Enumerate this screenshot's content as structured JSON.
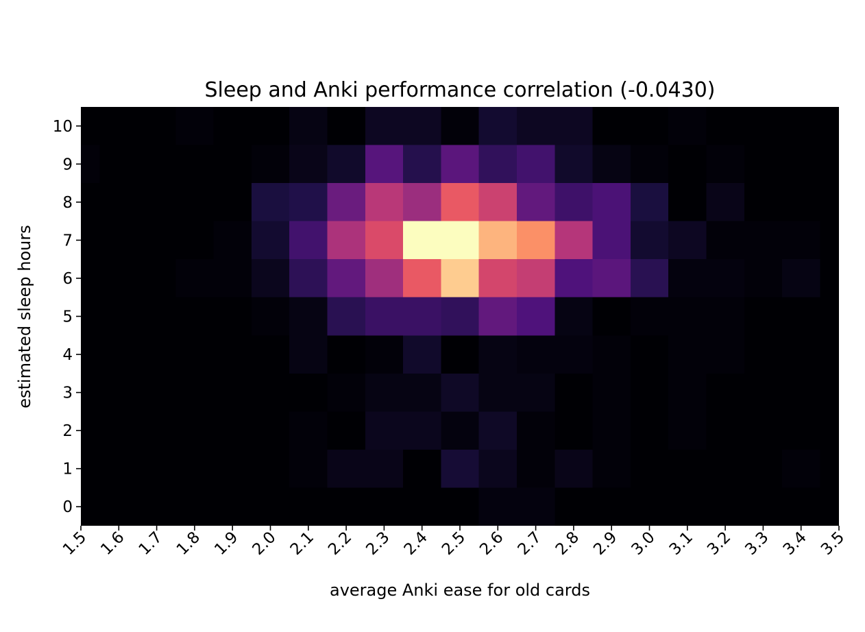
{
  "chart_data": {
    "type": "heatmap",
    "title": "Sleep and Anki performance correlation (-0.0430)",
    "xlabel": "average Anki ease for old cards",
    "ylabel": "estimated sleep hours",
    "x_ticks": [
      "1.5",
      "1.6",
      "1.7",
      "1.8",
      "1.9",
      "2.0",
      "2.1",
      "2.2",
      "2.3",
      "2.4",
      "2.5",
      "2.6",
      "2.7",
      "2.8",
      "2.9",
      "3.0",
      "3.1",
      "3.2",
      "3.3",
      "3.4",
      "3.5"
    ],
    "y_ticks": [
      "0",
      "1",
      "2",
      "3",
      "4",
      "5",
      "6",
      "7",
      "8",
      "9",
      "10"
    ],
    "x_bins": [
      1.5,
      1.6,
      1.7,
      1.8,
      1.9,
      2.0,
      2.1,
      2.2,
      2.3,
      2.4,
      2.5,
      2.6,
      2.7,
      2.8,
      2.9,
      3.0,
      3.1,
      3.2,
      3.3,
      3.4
    ],
    "y_bins": [
      0,
      1,
      2,
      3,
      4,
      5,
      6,
      7,
      8,
      9,
      10
    ],
    "xlim": [
      1.5,
      3.5
    ],
    "ylim": [
      -0.5,
      10.5
    ],
    "colormap": "magma",
    "grid": false,
    "values": [
      [
        0,
        0,
        0,
        0,
        0,
        0,
        0,
        0,
        0,
        0,
        0,
        0.02,
        0.02,
        0,
        0,
        0,
        0,
        0,
        0,
        0
      ],
      [
        0,
        0,
        0,
        0,
        0,
        0,
        0.01,
        0.04,
        0.04,
        0,
        0.1,
        0.05,
        0.01,
        0.04,
        0.01,
        0,
        0,
        0,
        0,
        0.01
      ],
      [
        0,
        0,
        0,
        0,
        0,
        0,
        0.01,
        0,
        0.05,
        0.05,
        0.02,
        0.07,
        0.01,
        0,
        0.01,
        0,
        0.01,
        0,
        0,
        0
      ],
      [
        0,
        0,
        0,
        0,
        0,
        0,
        0,
        0.01,
        0.03,
        0.03,
        0.07,
        0.03,
        0.03,
        0,
        0.01,
        0,
        0.01,
        0,
        0,
        0
      ],
      [
        0,
        0,
        0,
        0,
        0,
        0,
        0.03,
        0,
        0.01,
        0.08,
        0,
        0.03,
        0.02,
        0.02,
        0.01,
        0,
        0.01,
        0.01,
        0,
        0
      ],
      [
        0,
        0,
        0,
        0,
        0,
        0.01,
        0.03,
        0.16,
        0.2,
        0.2,
        0.18,
        0.3,
        0.25,
        0.03,
        0,
        0.01,
        0.01,
        0.01,
        0,
        0
      ],
      [
        0,
        0,
        0,
        0.01,
        0.01,
        0.05,
        0.17,
        0.3,
        0.45,
        0.65,
        0.9,
        0.58,
        0.54,
        0.25,
        0.28,
        0.16,
        0.02,
        0.02,
        0.01,
        0.03
      ],
      [
        0,
        0,
        0,
        0,
        0.01,
        0.09,
        0.22,
        0.48,
        0.6,
        1.0,
        1.0,
        0.85,
        0.77,
        0.5,
        0.24,
        0.09,
        0.06,
        0.01,
        0.01,
        0.01
      ],
      [
        0,
        0,
        0,
        0,
        0,
        0.12,
        0.14,
        0.32,
        0.51,
        0.44,
        0.65,
        0.56,
        0.3,
        0.21,
        0.24,
        0.12,
        0,
        0.04,
        0,
        0
      ],
      [
        0.01,
        0,
        0,
        0,
        0,
        0.01,
        0.04,
        0.08,
        0.27,
        0.15,
        0.28,
        0.18,
        0.22,
        0.08,
        0.03,
        0.01,
        0,
        0.01,
        0,
        0
      ],
      [
        0,
        0,
        0,
        0.01,
        0,
        0,
        0.03,
        0,
        0.06,
        0.06,
        0.01,
        0.09,
        0.06,
        0.06,
        0,
        0,
        0.01,
        0,
        0,
        0
      ]
    ]
  }
}
